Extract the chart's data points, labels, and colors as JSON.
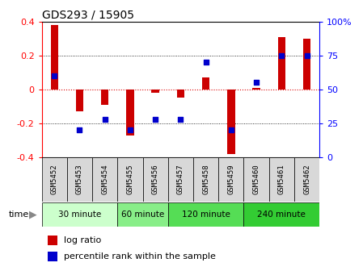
{
  "title": "GDS293 / 15905",
  "samples": [
    "GSM5452",
    "GSM5453",
    "GSM5454",
    "GSM5455",
    "GSM5456",
    "GSM5457",
    "GSM5458",
    "GSM5459",
    "GSM5460",
    "GSM5461",
    "GSM5462"
  ],
  "log_ratio": [
    0.38,
    -0.13,
    -0.09,
    -0.27,
    -0.02,
    -0.05,
    0.07,
    -0.38,
    0.01,
    0.31,
    0.3
  ],
  "percentile": [
    60,
    20,
    28,
    20,
    28,
    28,
    70,
    20,
    55,
    75,
    75
  ],
  "ylim_left": [
    -0.4,
    0.4
  ],
  "ylim_right": [
    0,
    100
  ],
  "yticks_left": [
    -0.4,
    -0.2,
    0.0,
    0.2,
    0.4
  ],
  "yticks_right": [
    0,
    25,
    50,
    75,
    100
  ],
  "groups": [
    {
      "label": "30 minute",
      "start": 0,
      "end": 2,
      "color": "#ccffcc"
    },
    {
      "label": "60 minute",
      "start": 3,
      "end": 4,
      "color": "#88ee88"
    },
    {
      "label": "120 minute",
      "start": 5,
      "end": 7,
      "color": "#55dd55"
    },
    {
      "label": "240 minute",
      "start": 8,
      "end": 10,
      "color": "#33cc33"
    }
  ],
  "bar_color": "#cc0000",
  "dot_color": "#0000cc",
  "zero_line_color": "#dd0000",
  "grid_color": "#000000",
  "background_color": "#ffffff",
  "label_log": "log ratio",
  "label_pct": "percentile rank within the sample",
  "time_label": "time"
}
